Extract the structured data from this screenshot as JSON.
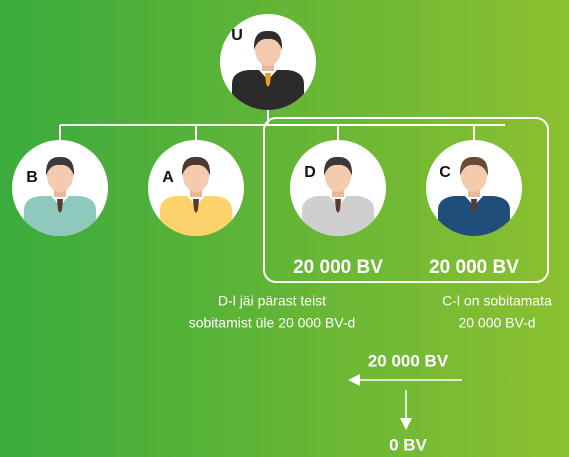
{
  "nodes": [
    {
      "label": "U"
    },
    {
      "label": "B"
    },
    {
      "label": "A"
    },
    {
      "label": "D",
      "amount": "20 000 BV",
      "note": [
        "D-l jäi pärast teist",
        "sobitamist üle 20 000 BV-d"
      ]
    },
    {
      "label": "C",
      "amount": "20 000 BV",
      "note": [
        "C-l on sobitamata",
        "20 000 BV-d"
      ]
    }
  ],
  "flow": {
    "from": "20 000 BV",
    "to": "0 BV"
  }
}
